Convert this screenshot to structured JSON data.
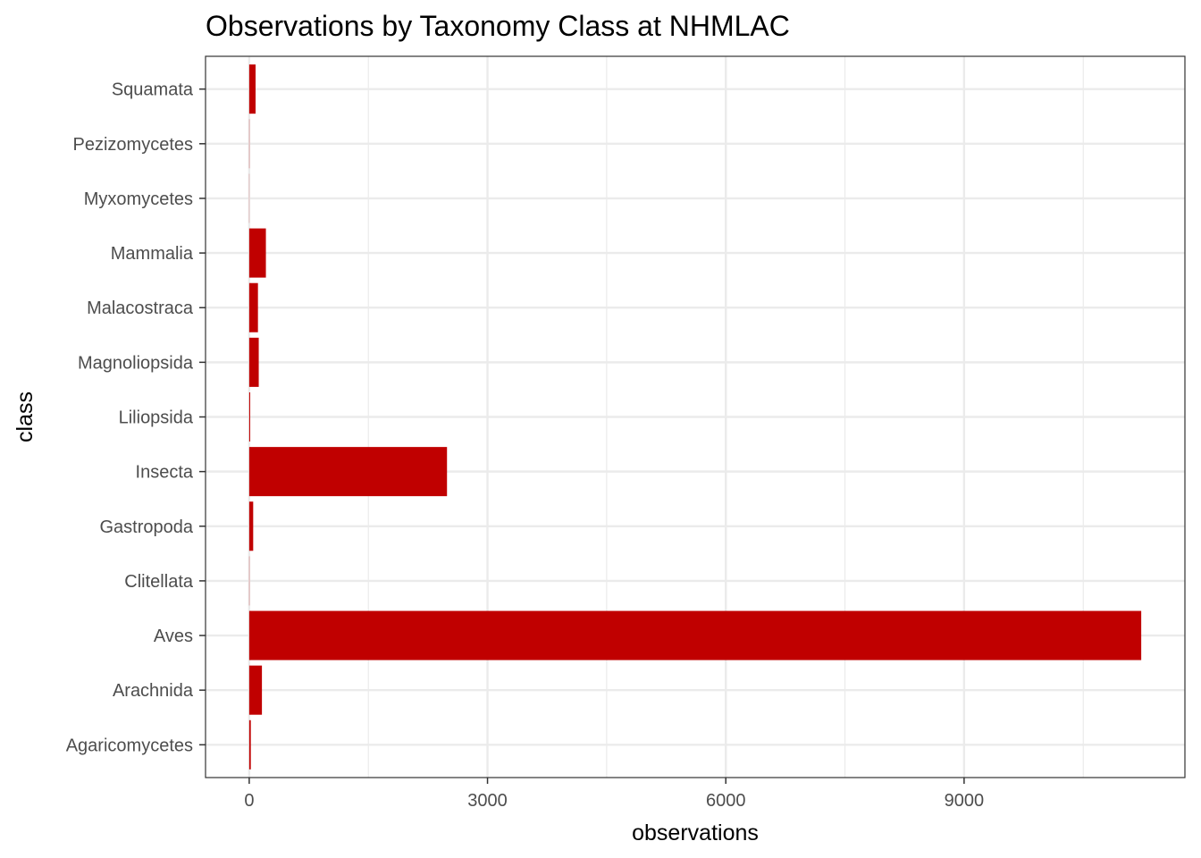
{
  "chart_data": {
    "type": "bar",
    "orientation": "horizontal",
    "title": "Observations by Taxonomy Class at NHMLAC",
    "xlabel": "observations",
    "ylabel": "class",
    "categories": [
      "Agaricomycetes",
      "Arachnida",
      "Aves",
      "Clitellata",
      "Gastropoda",
      "Insecta",
      "Liliopsida",
      "Magnoliopsida",
      "Malacostraca",
      "Mammalia",
      "Myxomycetes",
      "Pezizomycetes",
      "Squamata"
    ],
    "values": [
      20,
      160,
      11230,
      3,
      50,
      2490,
      12,
      120,
      110,
      210,
      2,
      3,
      80
    ],
    "xlim": [
      -550,
      11780
    ],
    "xticks": [
      0,
      3000,
      6000,
      9000
    ],
    "xtick_labels": [
      "0",
      "3000",
      "6000",
      "9000"
    ],
    "grid": true,
    "theme": "bw",
    "bar_color": "#c00000",
    "grid_color": "#ebebeb",
    "panel_border_color": "#333333"
  }
}
